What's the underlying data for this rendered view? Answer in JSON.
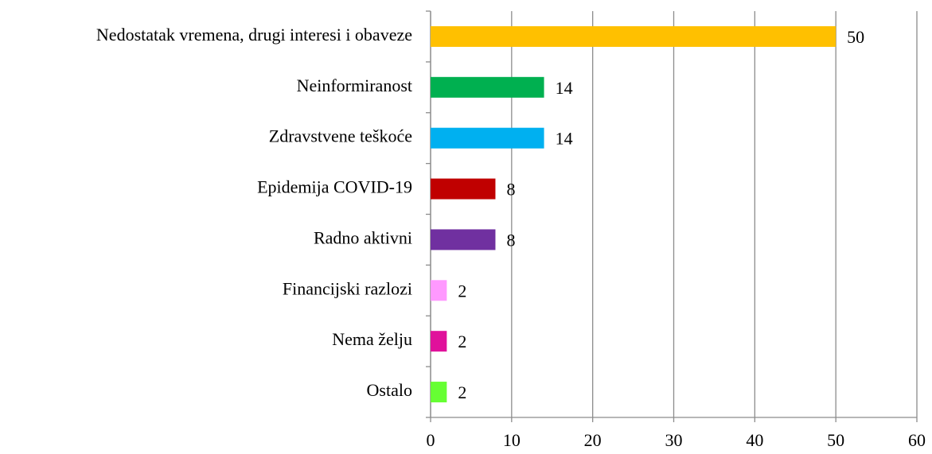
{
  "chart_data": {
    "type": "bar",
    "orientation": "horizontal",
    "categories": [
      "Nedostatak vremena, drugi interesi i obaveze",
      "Neinformiranost",
      "Zdravstvene teškoće",
      "Epidemija COVID-19",
      "Radno aktivni",
      "Financijski razlozi",
      "Nema želju",
      "Ostalo"
    ],
    "values": [
      50,
      14,
      14,
      8,
      8,
      2,
      2,
      2
    ],
    "colors": [
      "#ffc000",
      "#00b050",
      "#00b0f0",
      "#c00000",
      "#7030a0",
      "#ff99ff",
      "#e0119b",
      "#66ff33"
    ],
    "xlim": [
      0,
      60
    ],
    "xticks": [
      0,
      10,
      20,
      30,
      40,
      50,
      60
    ],
    "grid": true
  }
}
